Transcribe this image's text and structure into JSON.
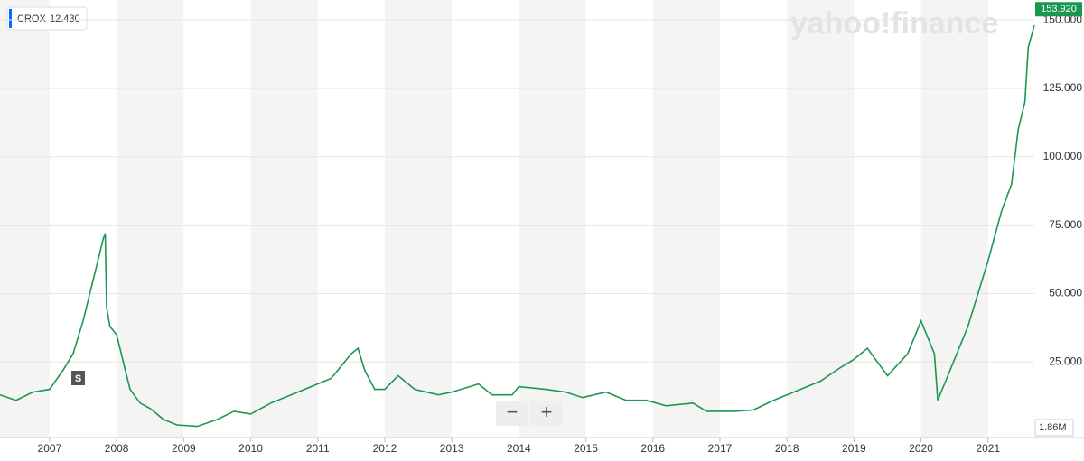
{
  "chart_data": {
    "type": "line",
    "watermark": "yahoo!finance",
    "legend_value": "12.430",
    "split_marker": "S",
    "zoom_out": "−",
    "zoom_in": "+",
    "volume_label": "1.86M",
    "last_price": {
      "value": 153.92,
      "label": "153.920"
    },
    "x": [
      2006.26,
      2006.5,
      2006.75,
      2007.0,
      2007.2,
      2007.35,
      2007.5,
      2007.6,
      2007.7,
      2007.8,
      2007.83,
      2007.85,
      2007.9,
      2008.0,
      2008.1,
      2008.2,
      2008.35,
      2008.5,
      2008.7,
      2008.9,
      2009.2,
      2009.5,
      2009.75,
      2010.0,
      2010.3,
      2010.6,
      2010.9,
      2011.2,
      2011.5,
      2011.6,
      2011.7,
      2011.85,
      2012.0,
      2012.2,
      2012.45,
      2012.8,
      2013.0,
      2013.4,
      2013.6,
      2013.9,
      2014.0,
      2014.4,
      2014.7,
      2014.95,
      2015.3,
      2015.6,
      2015.9,
      2016.2,
      2016.6,
      2016.8,
      2017.2,
      2017.5,
      2017.8,
      2018.2,
      2018.5,
      2018.8,
      2019.0,
      2019.2,
      2019.5,
      2019.8,
      2020.0,
      2020.2,
      2020.25,
      2020.4,
      2020.7,
      2021.0,
      2021.2,
      2021.35,
      2021.45,
      2021.55,
      2021.6,
      2021.69
    ],
    "series": [
      {
        "name": "CROX",
        "color": "#1a9850",
        "values": [
          13,
          11,
          14,
          15,
          22,
          28,
          40,
          50,
          60,
          70,
          72,
          45,
          38,
          35,
          25,
          15,
          10,
          8,
          4,
          2,
          1.5,
          4,
          7,
          6,
          10,
          13,
          16,
          19,
          28,
          30,
          22,
          15,
          15,
          20,
          15,
          13,
          14,
          17,
          13,
          13,
          16,
          15,
          14,
          12,
          14,
          11,
          11,
          9,
          10,
          7,
          7,
          7.5,
          11,
          15,
          18,
          23,
          26,
          30,
          20,
          28,
          40,
          28,
          11,
          20,
          38,
          62,
          80,
          90,
          110,
          120,
          140,
          148
        ]
      }
    ],
    "xlim": [
      2006.26,
      2021.69
    ],
    "ylim": [
      -2.6,
      157.3
    ],
    "xticks": [
      2007,
      2008,
      2009,
      2010,
      2011,
      2012,
      2013,
      2014,
      2015,
      2016,
      2017,
      2018,
      2019,
      2020,
      2021
    ],
    "yticks": [
      {
        "value": 25,
        "label": "25.000"
      },
      {
        "value": 50,
        "label": "50.000"
      },
      {
        "value": 75,
        "label": "75.000"
      },
      {
        "value": 100,
        "label": "100.000"
      },
      {
        "value": 125,
        "label": "125.000"
      },
      {
        "value": 150,
        "label": "150.000"
      }
    ],
    "grid": true
  }
}
